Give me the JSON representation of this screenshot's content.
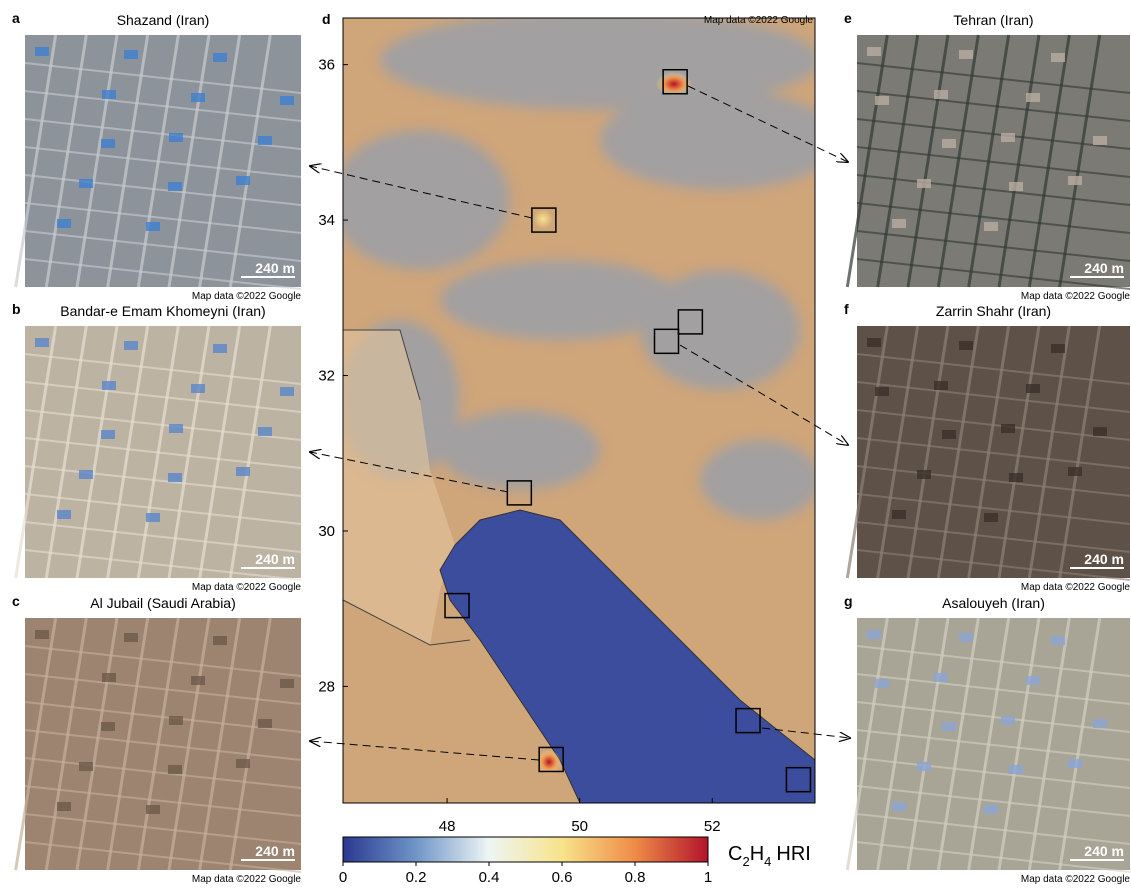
{
  "panels": [
    {
      "letter": "a",
      "title": "Shazand (Iran)",
      "scale": "240 m",
      "credit": "Map data ©2022 Google"
    },
    {
      "letter": "b",
      "title": "Bandar-e Emam Khomeyni (Iran)",
      "scale": "240 m",
      "credit": "Map data ©2022 Google"
    },
    {
      "letter": "c",
      "title": "Al Jubail (Saudi Arabia)",
      "scale": "240 m",
      "credit": "Map data ©2022 Google"
    },
    {
      "letter": "e",
      "title": "Tehran (Iran)",
      "scale": "240 m",
      "credit": "Map data ©2022 Google"
    },
    {
      "letter": "f",
      "title": "Zarrin Shahr (Iran)",
      "scale": "240 m",
      "credit": "Map data ©2022 Google"
    },
    {
      "letter": "g",
      "title": "Asalouyeh (Iran)",
      "scale": "240 m",
      "credit": "Map data ©2022 Google"
    }
  ],
  "map": {
    "letter": "d",
    "credit": "Map data ©2022 Google",
    "xlim": [
      46.43,
      53.55
    ],
    "ylim": [
      26.5,
      36.6
    ],
    "xticks": [
      48,
      50,
      52
    ],
    "yticks": [
      28,
      30,
      32,
      34,
      36
    ],
    "sites": [
      {
        "lon": 49.46,
        "lat": 34.0
      },
      {
        "lon": 51.44,
        "lat": 35.78
      },
      {
        "lon": 51.67,
        "lat": 32.69
      },
      {
        "lon": 51.31,
        "lat": 32.44
      },
      {
        "lon": 49.09,
        "lat": 30.49
      },
      {
        "lon": 48.15,
        "lat": 29.04
      },
      {
        "lon": 49.57,
        "lat": 27.06
      },
      {
        "lon": 52.54,
        "lat": 27.56
      },
      {
        "lon": 53.3,
        "lat": 26.8
      }
    ]
  },
  "colorbar": {
    "label": [
      "C",
      "2",
      "H",
      "4",
      "HRI"
    ],
    "lim": [
      0,
      1
    ],
    "ticks": [
      0,
      0.2,
      0.4,
      0.6,
      0.8,
      1
    ],
    "colormap": [
      "#2b3990",
      "#6f95c8",
      "#eef5f4",
      "#f8e38a",
      "#ef8b47",
      "#b3132b"
    ]
  }
}
